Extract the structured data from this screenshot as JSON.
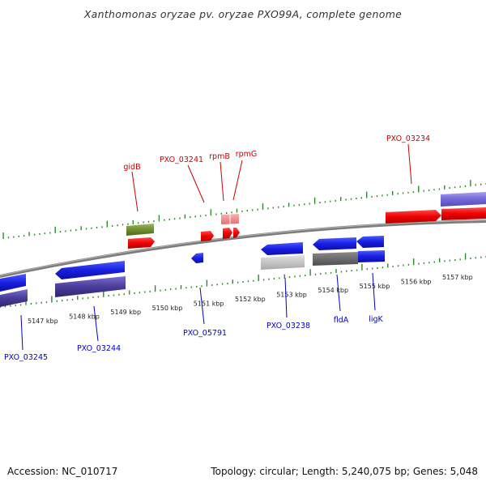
{
  "title": "Xanthomonas oryzae pv. oryzae PXO99A, complete genome",
  "footer": {
    "accession": "Accession: NC_010717",
    "summary": "Topology: circular; Length: 5,240,075 bp; Genes: 5,048"
  },
  "scale": {
    "labels": [
      "5147 kbp",
      "5148 kbp",
      "5149 kbp",
      "5150 kbp",
      "5151 kbp",
      "5152 kbp",
      "5153 kbp",
      "5154 kbp",
      "5155 kbp",
      "5156 kbp",
      "5157 kbp"
    ]
  },
  "genes_top": [
    {
      "label": "gidB",
      "color": "#cc0000"
    },
    {
      "label": "PXO_03241",
      "color": "#cc0000"
    },
    {
      "label": "rpmB",
      "color": "#cc0000"
    },
    {
      "label": "rpmG",
      "color": "#cc0000"
    },
    {
      "label": "PXO_03234",
      "color": "#cc0000"
    }
  ],
  "genes_bottom": [
    {
      "label": "PXO_03245",
      "color": "#0000cc"
    },
    {
      "label": "PXO_03244",
      "color": "#0000cc"
    },
    {
      "label": "PXO_05791",
      "color": "#0000cc"
    },
    {
      "label": "PXO_03238",
      "color": "#0000cc"
    },
    {
      "label": "fldA",
      "color": "#0000cc"
    },
    {
      "label": "ligK",
      "color": "#0000cc"
    }
  ]
}
